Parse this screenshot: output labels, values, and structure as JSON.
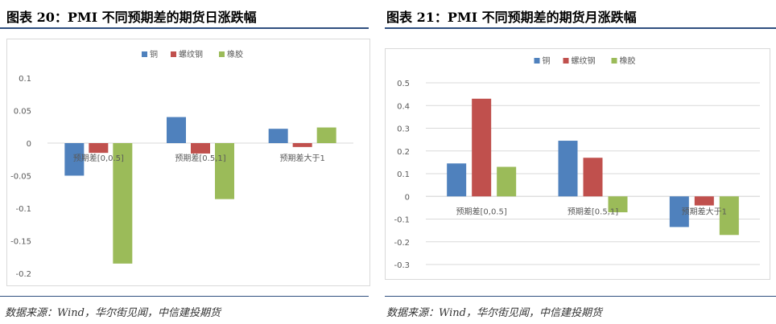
{
  "left_panel": {
    "title": "图表 20：PMI 不同预期差的期货日涨跌幅",
    "source": "数据来源：Wind，华尔街见闻，中信建投期货"
  },
  "right_panel": {
    "title": "图表 21：PMI 不同预期差的期货月涨跌幅",
    "source": "数据来源：Wind，华尔街见闻，中信建投期货"
  },
  "chart_data": [
    {
      "type": "bar",
      "categories": [
        "预期差[0,0.5]",
        "预期差[0.5,1]",
        "预期差大于1"
      ],
      "series": [
        {
          "name": "铜",
          "color": "#4f81bd",
          "values": [
            -0.05,
            0.04,
            0.022
          ]
        },
        {
          "name": "螺纹钢",
          "color": "#c0504d",
          "values": [
            -0.015,
            -0.016,
            -0.006
          ]
        },
        {
          "name": "橡胶",
          "color": "#9bbb59",
          "values": [
            -0.185,
            -0.086,
            0.024
          ]
        }
      ],
      "yticks": [
        0.1,
        0.05,
        0,
        -0.05,
        -0.1,
        -0.15,
        -0.2
      ],
      "ytick_labels": [
        "0.1",
        "0.05",
        "0",
        "-0.05",
        "-0.1",
        "-0.15",
        "-0.2"
      ],
      "ylim": [
        -0.2,
        0.1
      ],
      "grid": false,
      "legend_position": "top"
    },
    {
      "type": "bar",
      "categories": [
        "预期差[0,0.5]",
        "预期差[0.5,1]",
        "预期差大于1"
      ],
      "series": [
        {
          "name": "铜",
          "color": "#4f81bd",
          "values": [
            0.145,
            0.245,
            -0.135
          ]
        },
        {
          "name": "螺纹钢",
          "color": "#c0504d",
          "values": [
            0.43,
            0.17,
            -0.04
          ]
        },
        {
          "name": "橡胶",
          "color": "#9bbb59",
          "values": [
            0.13,
            -0.07,
            -0.17
          ]
        }
      ],
      "yticks": [
        0.5,
        0.4,
        0.3,
        0.2,
        0.1,
        0,
        -0.1,
        -0.2,
        -0.3
      ],
      "ytick_labels": [
        "0.5",
        "0.4",
        "0.3",
        "0.2",
        "0.1",
        "0",
        "-0.1",
        "-0.2",
        "-0.3"
      ],
      "ylim": [
        -0.3,
        0.5
      ],
      "grid": true,
      "legend_position": "top"
    }
  ]
}
